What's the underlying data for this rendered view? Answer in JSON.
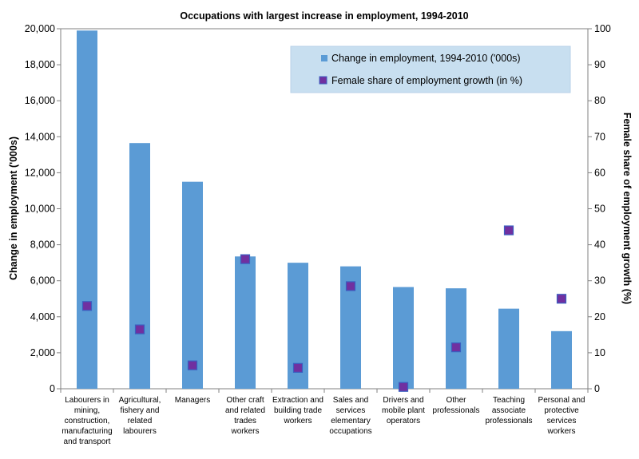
{
  "chart_data": {
    "type": "bar",
    "title": "Occupations with largest increase in employment, 1994-2010",
    "ylabel": "Change in employment ('000s)",
    "y2label": "Female share of employment growth (%)",
    "xlabel": "",
    "ylim": [
      0,
      20000
    ],
    "y2lim": [
      0,
      100
    ],
    "yticks": [
      "0",
      "2,000",
      "4,000",
      "6,000",
      "8,000",
      "10,000",
      "12,000",
      "14,000",
      "16,000",
      "18,000",
      "20,000"
    ],
    "y2ticks": [
      "0",
      "10",
      "20",
      "30",
      "40",
      "50",
      "60",
      "70",
      "80",
      "90",
      "100"
    ],
    "categories": [
      [
        "Labourers in",
        "mining,",
        "construction,",
        "manufacturing",
        "and transport"
      ],
      [
        "Agricultural,",
        "fishery and",
        "related",
        "labourers"
      ],
      [
        "Managers"
      ],
      [
        "Other craft",
        "and related",
        "trades",
        "workers"
      ],
      [
        "Extraction and",
        "building trade",
        "workers"
      ],
      [
        "Sales and",
        "services",
        "elementary",
        "occupations"
      ],
      [
        "Drivers and",
        "mobile plant",
        "operators"
      ],
      [
        "Other",
        "professionals"
      ],
      [
        "Teaching",
        "associate",
        "professionals"
      ],
      [
        "Personal and",
        "protective",
        "services",
        "workers"
      ]
    ],
    "series": [
      {
        "name": "Change in employment, 1994-2010 ('000s)",
        "kind": "bar",
        "axis": "left",
        "color": "#5b9bd5",
        "values": [
          19900,
          13650,
          11500,
          7350,
          7000,
          6800,
          5650,
          5580,
          4450,
          3200
        ]
      },
      {
        "name": "Female share of employment growth (in %)",
        "kind": "marker",
        "axis": "right",
        "color": "#7030a0",
        "values": [
          23,
          16.5,
          6.5,
          36,
          5.8,
          28.5,
          0.5,
          11.5,
          44,
          25
        ]
      }
    ],
    "legend_position": "top-right",
    "grid": false
  }
}
